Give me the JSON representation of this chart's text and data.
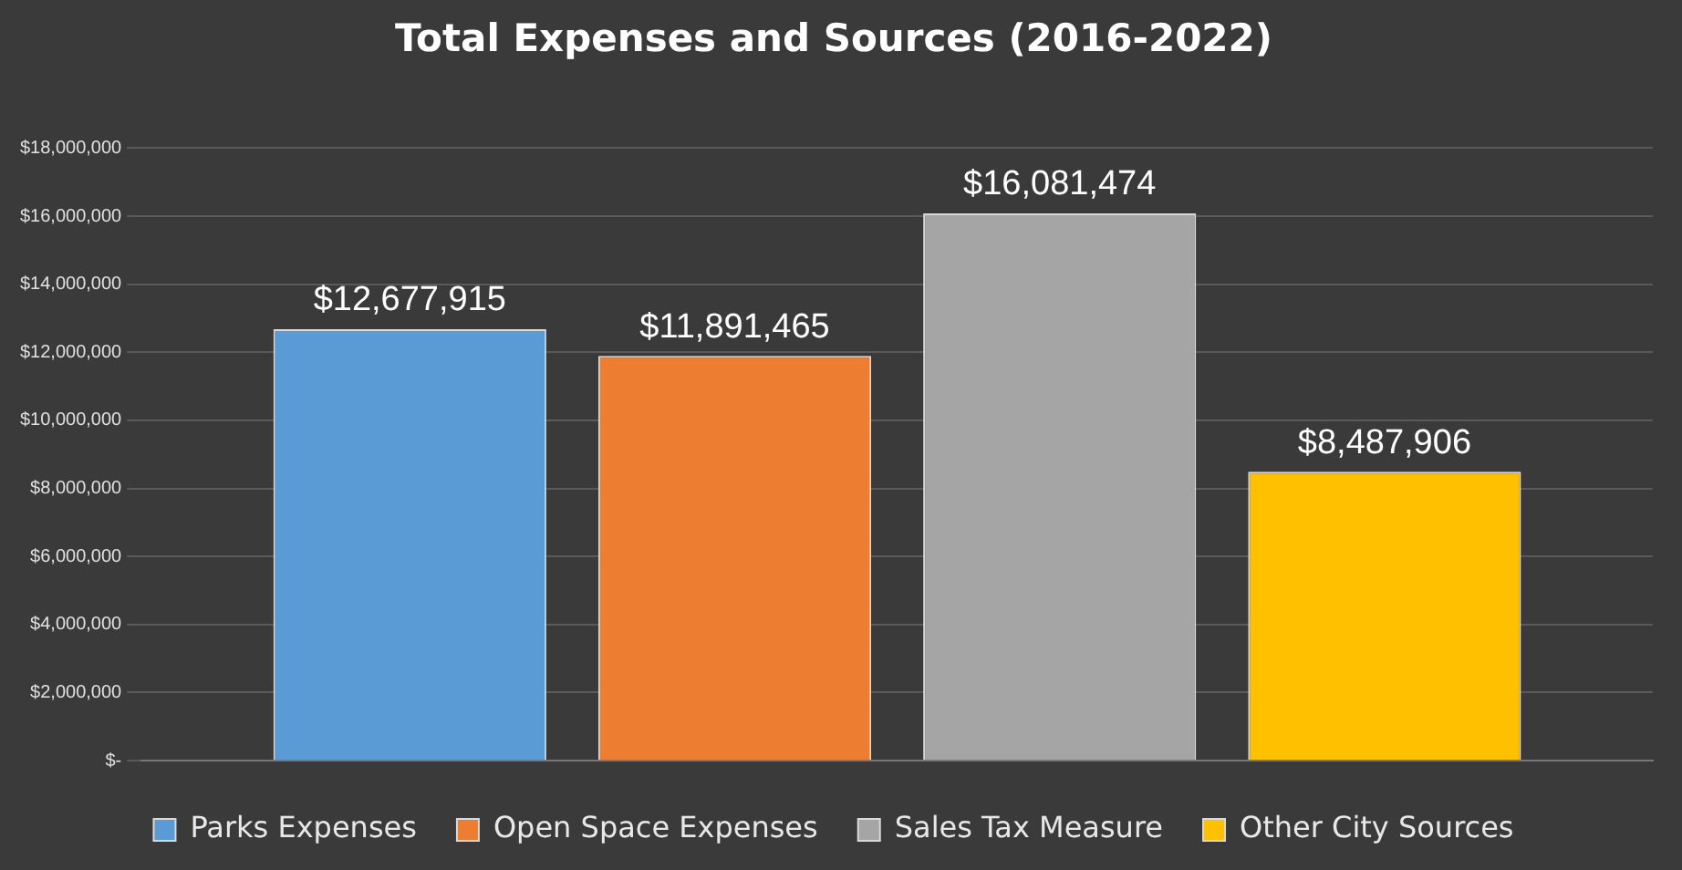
{
  "chart_data": {
    "type": "bar",
    "title": "Total Expenses and Sources (2016-2022)",
    "categories": [
      null
    ],
    "series": [
      {
        "name": "Parks Expenses",
        "color": "#5b9bd5",
        "values": [
          12677915
        ],
        "value_labels": [
          "$12,677,915"
        ]
      },
      {
        "name": "Open Space Expenses",
        "color": "#ed7d31",
        "values": [
          11891465
        ],
        "value_labels": [
          "$11,891,465"
        ]
      },
      {
        "name": "Sales Tax Measure",
        "color": "#a5a5a5",
        "values": [
          16081474
        ],
        "value_labels": [
          "$16,081,474"
        ]
      },
      {
        "name": "Other City Sources",
        "color": "#ffc000",
        "values": [
          8487906
        ],
        "value_labels": [
          "$8,487,906"
        ]
      }
    ],
    "ylim": [
      0,
      18000000
    ],
    "yticks": [
      {
        "value": 0,
        "label": "$-"
      },
      {
        "value": 2000000,
        "label": "$2,000,000"
      },
      {
        "value": 4000000,
        "label": "$4,000,000"
      },
      {
        "value": 6000000,
        "label": "$6,000,000"
      },
      {
        "value": 8000000,
        "label": "$8,000,000"
      },
      {
        "value": 10000000,
        "label": "$10,000,000"
      },
      {
        "value": 12000000,
        "label": "$12,000,000"
      },
      {
        "value": 14000000,
        "label": "$14,000,000"
      },
      {
        "value": 16000000,
        "label": "$16,000,000"
      },
      {
        "value": 18000000,
        "label": "$18,000,000"
      }
    ],
    "grid": "y",
    "legend": "bottom",
    "tick_labels": "y"
  }
}
